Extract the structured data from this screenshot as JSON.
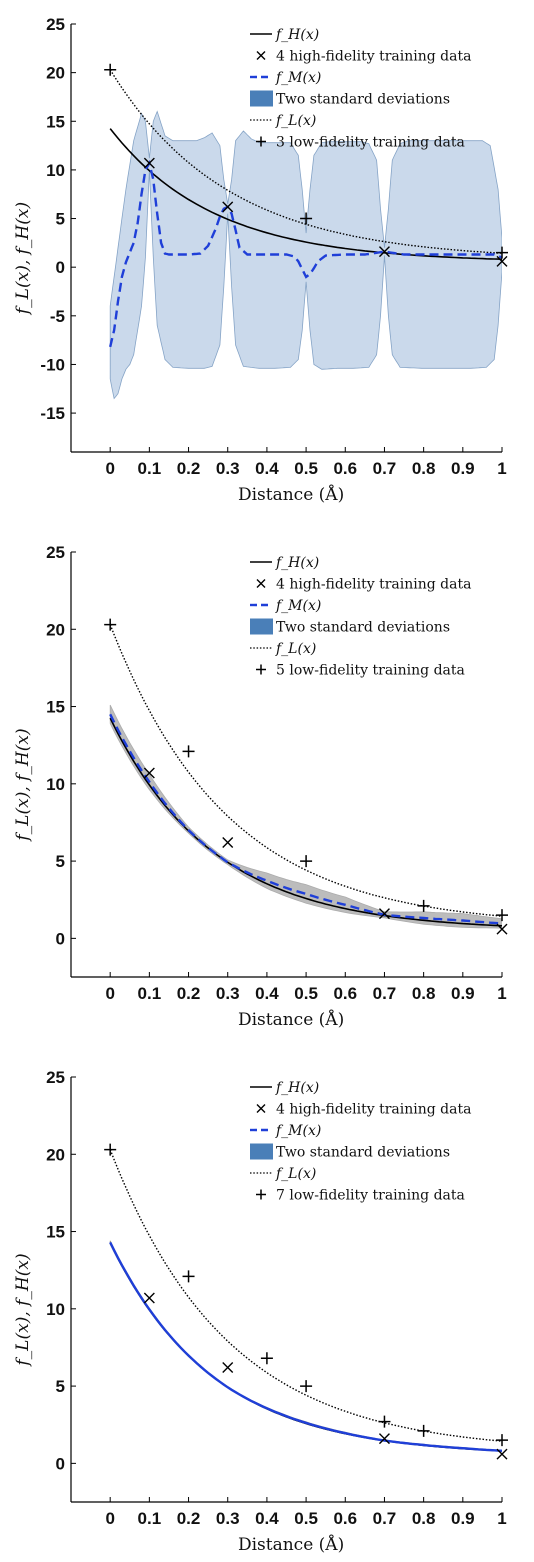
{
  "chart_data": [
    {
      "type": "line",
      "xlabel": "Distance (Å)",
      "ylabel": "f_L(x), f_H(x)",
      "ylim": [
        -19,
        25
      ],
      "xlim": [
        -0.1,
        1
      ],
      "yticks": [
        "-15",
        "-10",
        "-5",
        "0",
        "5",
        "10",
        "15",
        "20",
        "25"
      ],
      "xticks": [
        "0",
        "0.1",
        "0.2",
        "0.3",
        "0.4",
        "0.5",
        "0.6",
        "0.7",
        "0.8",
        "0.9",
        "1"
      ],
      "grid": false,
      "legend": [
        {
          "key": "fH",
          "label": "f_H(x)"
        },
        {
          "key": "hf",
          "label": "4 high-fidelity training data"
        },
        {
          "key": "fM",
          "label": "f_M(x)"
        },
        {
          "key": "band",
          "label": "Two standard deviations"
        },
        {
          "key": "fL",
          "label": "f_L(x)"
        },
        {
          "key": "lf",
          "label": "3 low-fidelity training data"
        }
      ],
      "legend_position": "top-right",
      "colors": {
        "fH": "#000000",
        "fM": "#1f3fd8",
        "band": "#c8d8ea",
        "band_edge": "#7f9fc4",
        "fL": "#000000"
      },
      "high_fidelity_points": {
        "x": [
          0.1,
          0.3,
          0.7,
          1.0
        ],
        "y": [
          10.7,
          6.2,
          1.6,
          0.6
        ]
      },
      "low_fidelity_points": {
        "x": [
          0.0,
          0.5,
          1.0
        ],
        "y": [
          20.3,
          5.0,
          1.5
        ]
      },
      "fM": {
        "x": [
          0,
          0.01,
          0.02,
          0.03,
          0.04,
          0.05,
          0.06,
          0.07,
          0.08,
          0.09,
          0.1,
          0.11,
          0.12,
          0.13,
          0.14,
          0.15,
          0.17,
          0.2,
          0.23,
          0.25,
          0.27,
          0.28,
          0.29,
          0.3,
          0.31,
          0.32,
          0.33,
          0.35,
          0.4,
          0.45,
          0.47,
          0.48,
          0.49,
          0.5,
          0.51,
          0.52,
          0.53,
          0.55,
          0.6,
          0.65,
          0.7,
          0.75,
          0.8,
          0.85,
          0.9,
          0.95,
          0.98,
          1.0
        ],
        "y": [
          -8.2,
          -6.5,
          -3.5,
          -1.0,
          0.5,
          1.5,
          2.5,
          4.5,
          7.5,
          10.0,
          10.7,
          9.0,
          5.5,
          2.5,
          1.4,
          1.3,
          1.3,
          1.3,
          1.4,
          2.2,
          4.0,
          5.2,
          6.0,
          6.2,
          5.5,
          3.8,
          2.0,
          1.3,
          1.3,
          1.3,
          1.1,
          0.6,
          -0.2,
          -1.0,
          -0.7,
          -0.1,
          0.6,
          1.2,
          1.3,
          1.3,
          1.6,
          1.3,
          1.3,
          1.3,
          1.3,
          1.3,
          1.3,
          1.0
        ]
      },
      "band_upper": {
        "x": [
          0,
          0.02,
          0.04,
          0.06,
          0.08,
          0.09,
          0.1,
          0.11,
          0.12,
          0.14,
          0.16,
          0.18,
          0.2,
          0.22,
          0.24,
          0.26,
          0.28,
          0.29,
          0.3,
          0.31,
          0.32,
          0.34,
          0.36,
          0.38,
          0.4,
          0.42,
          0.44,
          0.46,
          0.48,
          0.49,
          0.5,
          0.51,
          0.52,
          0.54,
          0.56,
          0.6,
          0.64,
          0.66,
          0.68,
          0.69,
          0.7,
          0.71,
          0.72,
          0.74,
          0.76,
          0.8,
          0.85,
          0.9,
          0.95,
          0.97,
          0.99,
          1.0
        ],
        "y": [
          -4.0,
          2.0,
          8.0,
          13.0,
          15.8,
          15.0,
          11.2,
          15.0,
          16.0,
          13.5,
          13.0,
          13.0,
          13.0,
          13.0,
          13.3,
          13.8,
          12.5,
          9.0,
          6.5,
          9.0,
          13.0,
          14.0,
          13.2,
          12.8,
          12.8,
          12.8,
          12.8,
          12.8,
          11.5,
          8.0,
          3.5,
          8.0,
          11.5,
          12.8,
          12.9,
          12.9,
          12.9,
          12.7,
          11.0,
          6.0,
          2.0,
          6.0,
          11.0,
          12.7,
          13.0,
          13.0,
          13.0,
          13.0,
          13.0,
          12.5,
          8.0,
          3.0
        ]
      },
      "band_lower": {
        "x": [
          0,
          0.01,
          0.02,
          0.03,
          0.04,
          0.05,
          0.06,
          0.08,
          0.09,
          0.1,
          0.11,
          0.12,
          0.14,
          0.16,
          0.2,
          0.24,
          0.26,
          0.28,
          0.29,
          0.3,
          0.31,
          0.32,
          0.34,
          0.38,
          0.42,
          0.46,
          0.48,
          0.49,
          0.5,
          0.51,
          0.52,
          0.54,
          0.58,
          0.62,
          0.66,
          0.68,
          0.69,
          0.7,
          0.71,
          0.72,
          0.74,
          0.8,
          0.86,
          0.92,
          0.96,
          0.98,
          0.99,
          1.0
        ],
        "y": [
          -11.5,
          -13.5,
          -13.0,
          -11.5,
          -10.5,
          -10.0,
          -9.0,
          -4.0,
          1.0,
          10.0,
          1.0,
          -6.0,
          -9.5,
          -10.3,
          -10.4,
          -10.4,
          -10.2,
          -8.0,
          -2.0,
          5.5,
          -2.0,
          -8.0,
          -10.2,
          -10.4,
          -10.4,
          -10.3,
          -9.5,
          -6.5,
          -1.5,
          -6.5,
          -10.0,
          -10.5,
          -10.4,
          -10.4,
          -10.3,
          -9.0,
          -5.0,
          1.2,
          -5.0,
          -9.0,
          -10.3,
          -10.4,
          -10.4,
          -10.4,
          -10.3,
          -9.5,
          -6.0,
          -0.5
        ]
      }
    },
    {
      "type": "line",
      "xlabel": "Distance (Å)",
      "ylabel": "f_L(x), f_H(x)",
      "ylim": [
        -2.5,
        25
      ],
      "xlim": [
        -0.1,
        1
      ],
      "yticks": [
        "0",
        "5",
        "10",
        "15",
        "20",
        "25"
      ],
      "xticks": [
        "0",
        "0.1",
        "0.2",
        "0.3",
        "0.4",
        "0.5",
        "0.6",
        "0.7",
        "0.8",
        "0.9",
        "1"
      ],
      "grid": false,
      "legend": [
        {
          "key": "fH",
          "label": "f_H(x)"
        },
        {
          "key": "hf",
          "label": "4 high-fidelity training data"
        },
        {
          "key": "fM",
          "label": "f_M(x)"
        },
        {
          "key": "band",
          "label": "Two standard deviations"
        },
        {
          "key": "fL",
          "label": "f_L(x)"
        },
        {
          "key": "lf",
          "label": "5 low-fidelity training data"
        }
      ],
      "legend_position": "top-right",
      "colors": {
        "fH": "#000000",
        "fM": "#1f3fd8",
        "band": "#b9b9b9",
        "band_edge": "#a8a8a8",
        "fL": "#000000"
      },
      "high_fidelity_points": {
        "x": [
          0.1,
          0.3,
          0.7,
          1.0
        ],
        "y": [
          10.7,
          6.2,
          1.6,
          0.6
        ]
      },
      "low_fidelity_points": {
        "x": [
          0.0,
          0.2,
          0.5,
          0.8,
          1.0
        ],
        "y": [
          20.3,
          12.1,
          5.0,
          2.1,
          1.5
        ]
      },
      "fM_delta": [
        0.25,
        0.2,
        0.05,
        0,
        0.2,
        0.3,
        0.25,
        0.05,
        0.15,
        0.2,
        0.15
      ],
      "band_width": [
        0.6,
        0.5,
        0.2,
        0.15,
        0.5,
        0.6,
        0.5,
        0.2,
        0.4,
        0.45,
        0.3
      ]
    },
    {
      "type": "line",
      "xlabel": "Distance (Å)",
      "ylabel": "f_L(x), f_H(x)",
      "ylim": [
        -2.5,
        25
      ],
      "xlim": [
        -0.1,
        1
      ],
      "yticks": [
        "0",
        "5",
        "10",
        "15",
        "20",
        "25"
      ],
      "xticks": [
        "0",
        "0.1",
        "0.2",
        "0.3",
        "0.4",
        "0.5",
        "0.6",
        "0.7",
        "0.8",
        "0.9",
        "1"
      ],
      "grid": false,
      "legend": [
        {
          "key": "fH",
          "label": "f_H(x)"
        },
        {
          "key": "hf",
          "label": "4 high-fidelity training data"
        },
        {
          "key": "fM",
          "label": "f_M(x)"
        },
        {
          "key": "band",
          "label": "Two standard deviations"
        },
        {
          "key": "fL",
          "label": "f_L(x)"
        },
        {
          "key": "lf",
          "label": "7 low-fidelity training data"
        }
      ],
      "legend_position": "top-right",
      "colors": {
        "fH": "#000000",
        "fM": "#1f3fd8",
        "band": "#9a9a9a",
        "band_edge": "#8a8a8a",
        "fL": "#000000"
      },
      "high_fidelity_points": {
        "x": [
          0.1,
          0.3,
          0.7,
          1.0
        ],
        "y": [
          10.7,
          6.2,
          1.6,
          0.6
        ]
      },
      "low_fidelity_points": {
        "x": [
          0.0,
          0.2,
          0.4,
          0.5,
          0.7,
          0.8,
          1.0
        ],
        "y": [
          20.3,
          12.1,
          6.8,
          5.0,
          2.7,
          2.1,
          1.5
        ]
      },
      "fM_delta": [
        0.05,
        0.04,
        0.02,
        0,
        0.03,
        0.04,
        0.03,
        0,
        0.02,
        0.02,
        0
      ],
      "band_width": [
        0.1,
        0.08,
        0.05,
        0.04,
        0.06,
        0.07,
        0.06,
        0.04,
        0.05,
        0.05,
        0.04
      ]
    }
  ],
  "model_curves": {
    "fH": {
      "A": 13.75,
      "k": 3.78,
      "C": 0.5
    },
    "fL": {
      "A": 19.55,
      "k": 3.35,
      "C": 0.75
    }
  }
}
